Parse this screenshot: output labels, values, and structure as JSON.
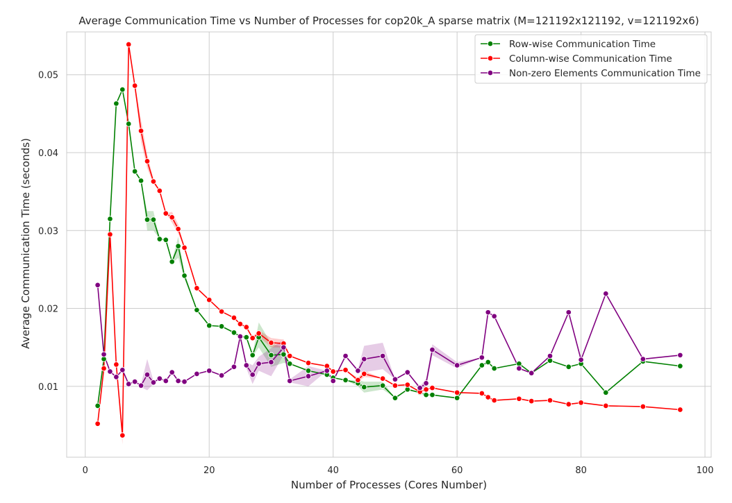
{
  "chart_data": {
    "type": "line",
    "title": "Average Communication Time vs Number of Processes for cop20k_A sparse matrix (M=121192x121192, v=121192x6)",
    "xlabel": "Number of Processes (Cores Number)",
    "ylabel": "Average Communication Time (seconds)",
    "xlim": [
      -3,
      101
    ],
    "ylim": [
      0.0009,
      0.0555
    ],
    "xticks": [
      0,
      20,
      40,
      60,
      80,
      100
    ],
    "xtick_labels": [
      "0",
      "20",
      "40",
      "60",
      "80",
      "100"
    ],
    "yticks": [
      0.01,
      0.02,
      0.03,
      0.04,
      0.05
    ],
    "ytick_labels": [
      "0.01",
      "0.02",
      "0.03",
      "0.04",
      "0.05"
    ],
    "grid": true,
    "legend_position": "top-right",
    "series": [
      {
        "name": "Row-wise Communication Time",
        "color": "#008000",
        "x": [
          2,
          3,
          4,
          5,
          6,
          7,
          8,
          9,
          10,
          11,
          12,
          13,
          14,
          15,
          16,
          18,
          20,
          22,
          24,
          25,
          26,
          27,
          28,
          30,
          32,
          33,
          36,
          39,
          40,
          42,
          44,
          45,
          48,
          50,
          52,
          54,
          55,
          56,
          60,
          64,
          65,
          66,
          70,
          72,
          75,
          78,
          80,
          84,
          90,
          96
        ],
        "y": [
          0.0075,
          0.0135,
          0.0315,
          0.0463,
          0.0481,
          0.0437,
          0.0376,
          0.0364,
          0.0314,
          0.0314,
          0.0289,
          0.0288,
          0.026,
          0.028,
          0.0242,
          0.0198,
          0.0178,
          0.0177,
          0.0169,
          0.0164,
          0.0163,
          0.014,
          0.0163,
          0.014,
          0.0141,
          0.0129,
          0.012,
          0.0115,
          0.0111,
          0.0108,
          0.0104,
          0.0099,
          0.0101,
          0.0085,
          0.0096,
          0.0092,
          0.0089,
          0.0089,
          0.0085,
          0.0127,
          0.0131,
          0.0123,
          0.0129,
          0.0117,
          0.0133,
          0.0125,
          0.0129,
          0.0092,
          0.0132,
          0.0126
        ]
      },
      {
        "name": "Column-wise Communication Time",
        "color": "#ff0000",
        "x": [
          2,
          3,
          4,
          5,
          6,
          7,
          8,
          9,
          10,
          11,
          12,
          13,
          14,
          15,
          16,
          18,
          20,
          22,
          24,
          25,
          26,
          27,
          28,
          30,
          32,
          33,
          36,
          39,
          40,
          42,
          44,
          45,
          48,
          50,
          52,
          54,
          55,
          56,
          60,
          64,
          65,
          66,
          70,
          72,
          75,
          78,
          80,
          84,
          90,
          96
        ],
        "y": [
          0.0052,
          0.0123,
          0.0295,
          0.0128,
          0.0037,
          0.0539,
          0.0486,
          0.0428,
          0.0389,
          0.0363,
          0.0351,
          0.0322,
          0.0317,
          0.0302,
          0.0278,
          0.0226,
          0.0211,
          0.0196,
          0.0188,
          0.018,
          0.0176,
          0.0162,
          0.0168,
          0.0156,
          0.0155,
          0.0139,
          0.013,
          0.0126,
          0.0119,
          0.0121,
          0.0108,
          0.0116,
          0.011,
          0.0101,
          0.0102,
          0.0093,
          0.0096,
          0.0098,
          0.0092,
          0.0091,
          0.0086,
          0.0082,
          0.0084,
          0.0081,
          0.0082,
          0.0077,
          0.0079,
          0.0075,
          0.0074,
          0.007
        ]
      },
      {
        "name": "Non-zero Elements Communication Time",
        "color": "#800080",
        "x": [
          2,
          3,
          4,
          5,
          6,
          7,
          8,
          9,
          10,
          11,
          12,
          13,
          14,
          15,
          16,
          18,
          20,
          22,
          24,
          25,
          26,
          27,
          28,
          30,
          32,
          33,
          36,
          39,
          40,
          42,
          44,
          45,
          48,
          50,
          52,
          54,
          55,
          56,
          60,
          64,
          65,
          66,
          70,
          72,
          75,
          78,
          80,
          84,
          90,
          96
        ],
        "y": [
          0.023,
          0.0141,
          0.0119,
          0.0112,
          0.0121,
          0.0103,
          0.0106,
          0.0101,
          0.0115,
          0.0105,
          0.011,
          0.0107,
          0.0118,
          0.0107,
          0.0106,
          0.0116,
          0.012,
          0.0114,
          0.0125,
          0.0164,
          0.0127,
          0.0115,
          0.0129,
          0.0131,
          0.015,
          0.0107,
          0.0113,
          0.012,
          0.0107,
          0.0139,
          0.012,
          0.0135,
          0.0139,
          0.0109,
          0.0118,
          0.0098,
          0.0104,
          0.0147,
          0.0127,
          0.0137,
          0.0195,
          0.019,
          0.0123,
          0.0117,
          0.0139,
          0.0195,
          0.0134,
          0.0219,
          0.0135,
          0.014
        ]
      }
    ],
    "confidence_bands": [
      {
        "series": "Row-wise Communication Time",
        "x": [
          10,
          11,
          14,
          15,
          16,
          27,
          28,
          30,
          32,
          44,
          45,
          48
        ],
        "lower": [
          0.03,
          0.03,
          0.0258,
          0.0265,
          0.0238,
          0.0138,
          0.015,
          0.0125,
          0.013,
          0.01,
          0.0092,
          0.0096
        ],
        "upper": [
          0.0325,
          0.0325,
          0.0262,
          0.0292,
          0.0246,
          0.0142,
          0.0182,
          0.0155,
          0.015,
          0.0108,
          0.0106,
          0.0106
        ]
      },
      {
        "series": "Column-wise Communication Time",
        "x": [
          5,
          6,
          7,
          8,
          9,
          10,
          11,
          14,
          15,
          27,
          28,
          30,
          32,
          44,
          45
        ],
        "lower": [
          0.0125,
          0.0025,
          0.0536,
          0.0483,
          0.0414,
          0.038,
          0.036,
          0.031,
          0.0296,
          0.016,
          0.0164,
          0.015,
          0.015,
          0.0105,
          0.0112
        ],
        "upper": [
          0.0131,
          0.0049,
          0.0542,
          0.0489,
          0.0442,
          0.0398,
          0.0366,
          0.0324,
          0.0308,
          0.0164,
          0.0172,
          0.0162,
          0.016,
          0.0111,
          0.012
        ]
      },
      {
        "series": "Non-zero Elements Communication Time",
        "x": [
          9,
          10,
          11,
          24,
          25,
          26,
          27,
          28,
          30,
          32,
          33,
          36,
          44,
          45,
          48,
          54,
          55,
          56,
          60
        ],
        "lower": [
          0.0099,
          0.0095,
          0.0103,
          0.0123,
          0.016,
          0.0123,
          0.0103,
          0.012,
          0.0113,
          0.014,
          0.0105,
          0.01,
          0.0118,
          0.0118,
          0.0122,
          0.0096,
          0.0098,
          0.014,
          0.0123
        ],
        "upper": [
          0.0103,
          0.0135,
          0.0107,
          0.0127,
          0.0168,
          0.0131,
          0.0127,
          0.0138,
          0.0149,
          0.016,
          0.0109,
          0.0126,
          0.0122,
          0.0152,
          0.0156,
          0.01,
          0.011,
          0.0154,
          0.0131
        ]
      }
    ]
  }
}
